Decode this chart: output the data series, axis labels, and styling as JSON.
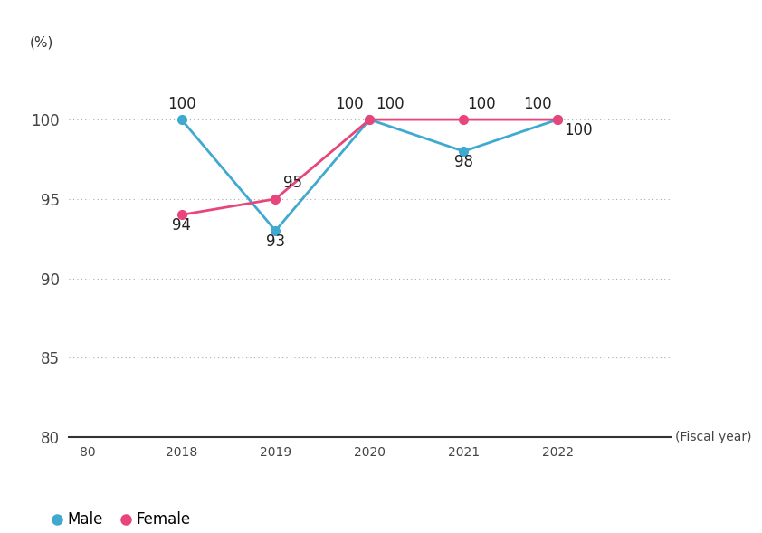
{
  "years": [
    2018,
    2019,
    2020,
    2021,
    2022
  ],
  "male_values": [
    100,
    93,
    100,
    98,
    100
  ],
  "female_values": [
    94,
    95,
    100,
    100,
    100
  ],
  "male_color": "#3fa9d0",
  "female_color": "#e8457a",
  "ylim": [
    80,
    103.5
  ],
  "yticks": [
    80,
    85,
    90,
    95,
    100
  ],
  "ylabel": "(%)",
  "xlabel_suffix": "(Fiscal year)",
  "legend_labels": [
    "Male",
    "Female"
  ],
  "marker_size": 7,
  "line_width": 2.0,
  "grid_color": "#aaaaaa",
  "background_color": "#ffffff",
  "tick_fontsize": 12,
  "annotation_fontsize": 12
}
